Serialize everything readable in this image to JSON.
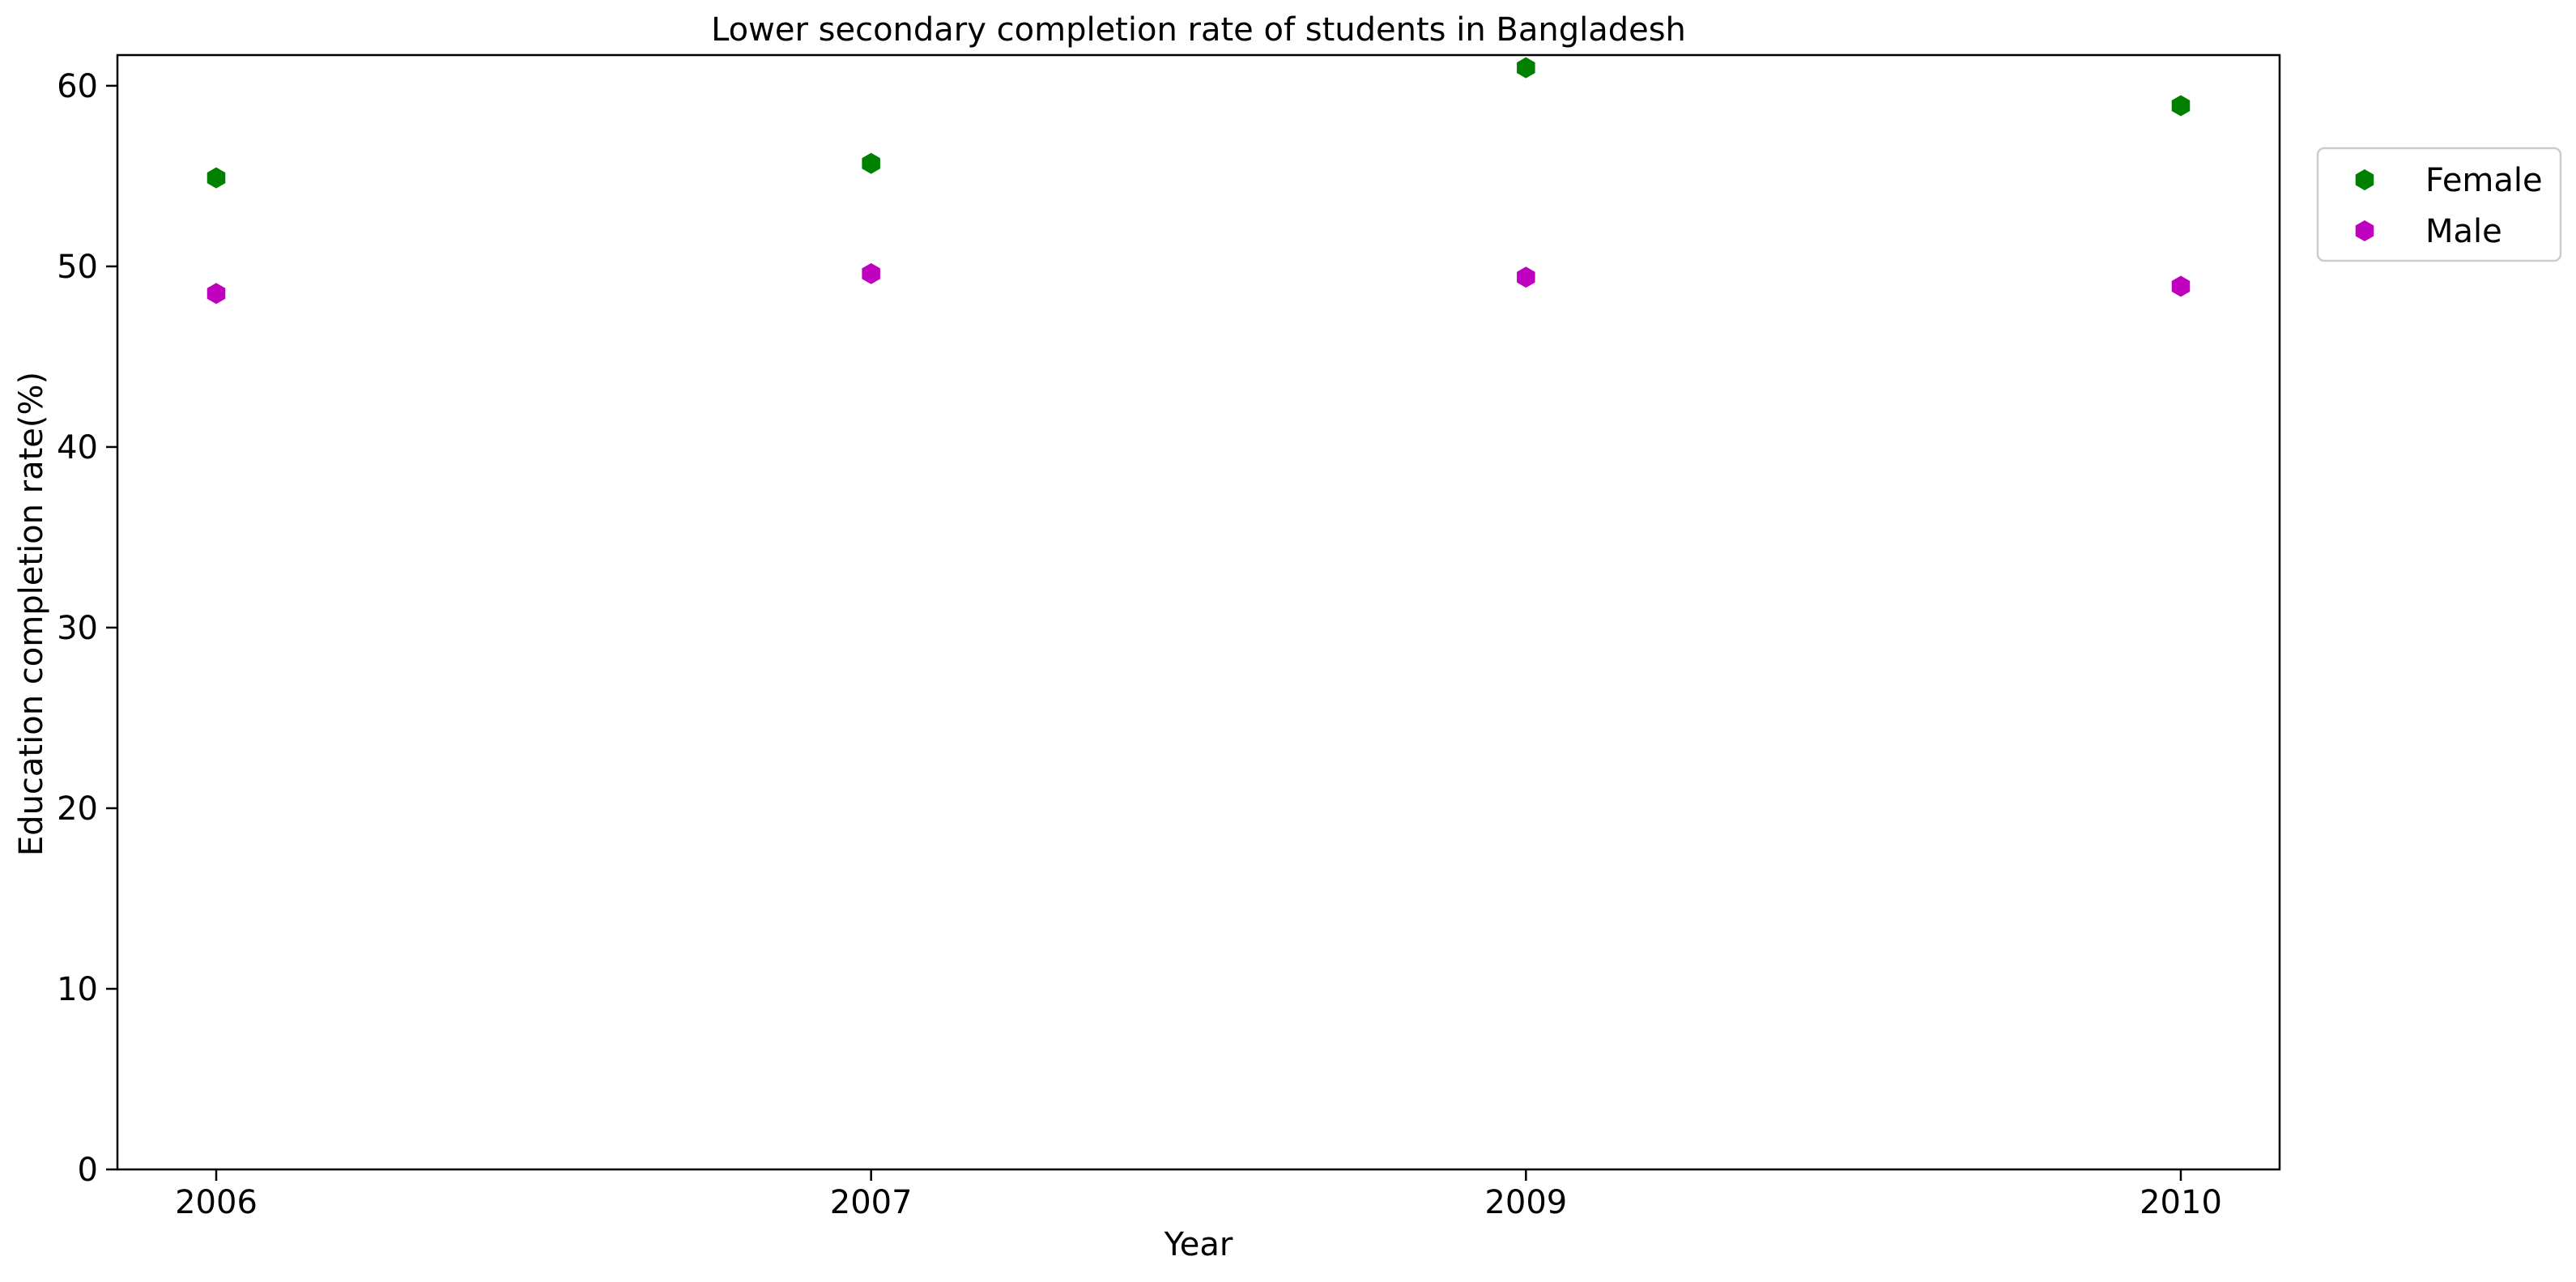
{
  "chart_data": {
    "type": "scatter",
    "title": "Lower secondary completion rate of students in Bangladesh",
    "xlabel": "Year",
    "ylabel": "Education completion rate(%)",
    "categories": [
      "2006",
      "2007",
      "2009",
      "2010"
    ],
    "ylim": [
      0,
      61.7
    ],
    "yticks": [
      0,
      10,
      20,
      30,
      40,
      50,
      60
    ],
    "grid": false,
    "legend_position": "upper right, outside plot",
    "series": [
      {
        "name": "Female",
        "color": "#008000",
        "marker": "hexagon",
        "values": [
          54.9,
          55.7,
          61.0,
          58.9
        ]
      },
      {
        "name": "Male",
        "color": "#bf00bf",
        "marker": "hexagon",
        "values": [
          48.5,
          49.6,
          49.4,
          48.9
        ]
      }
    ]
  }
}
